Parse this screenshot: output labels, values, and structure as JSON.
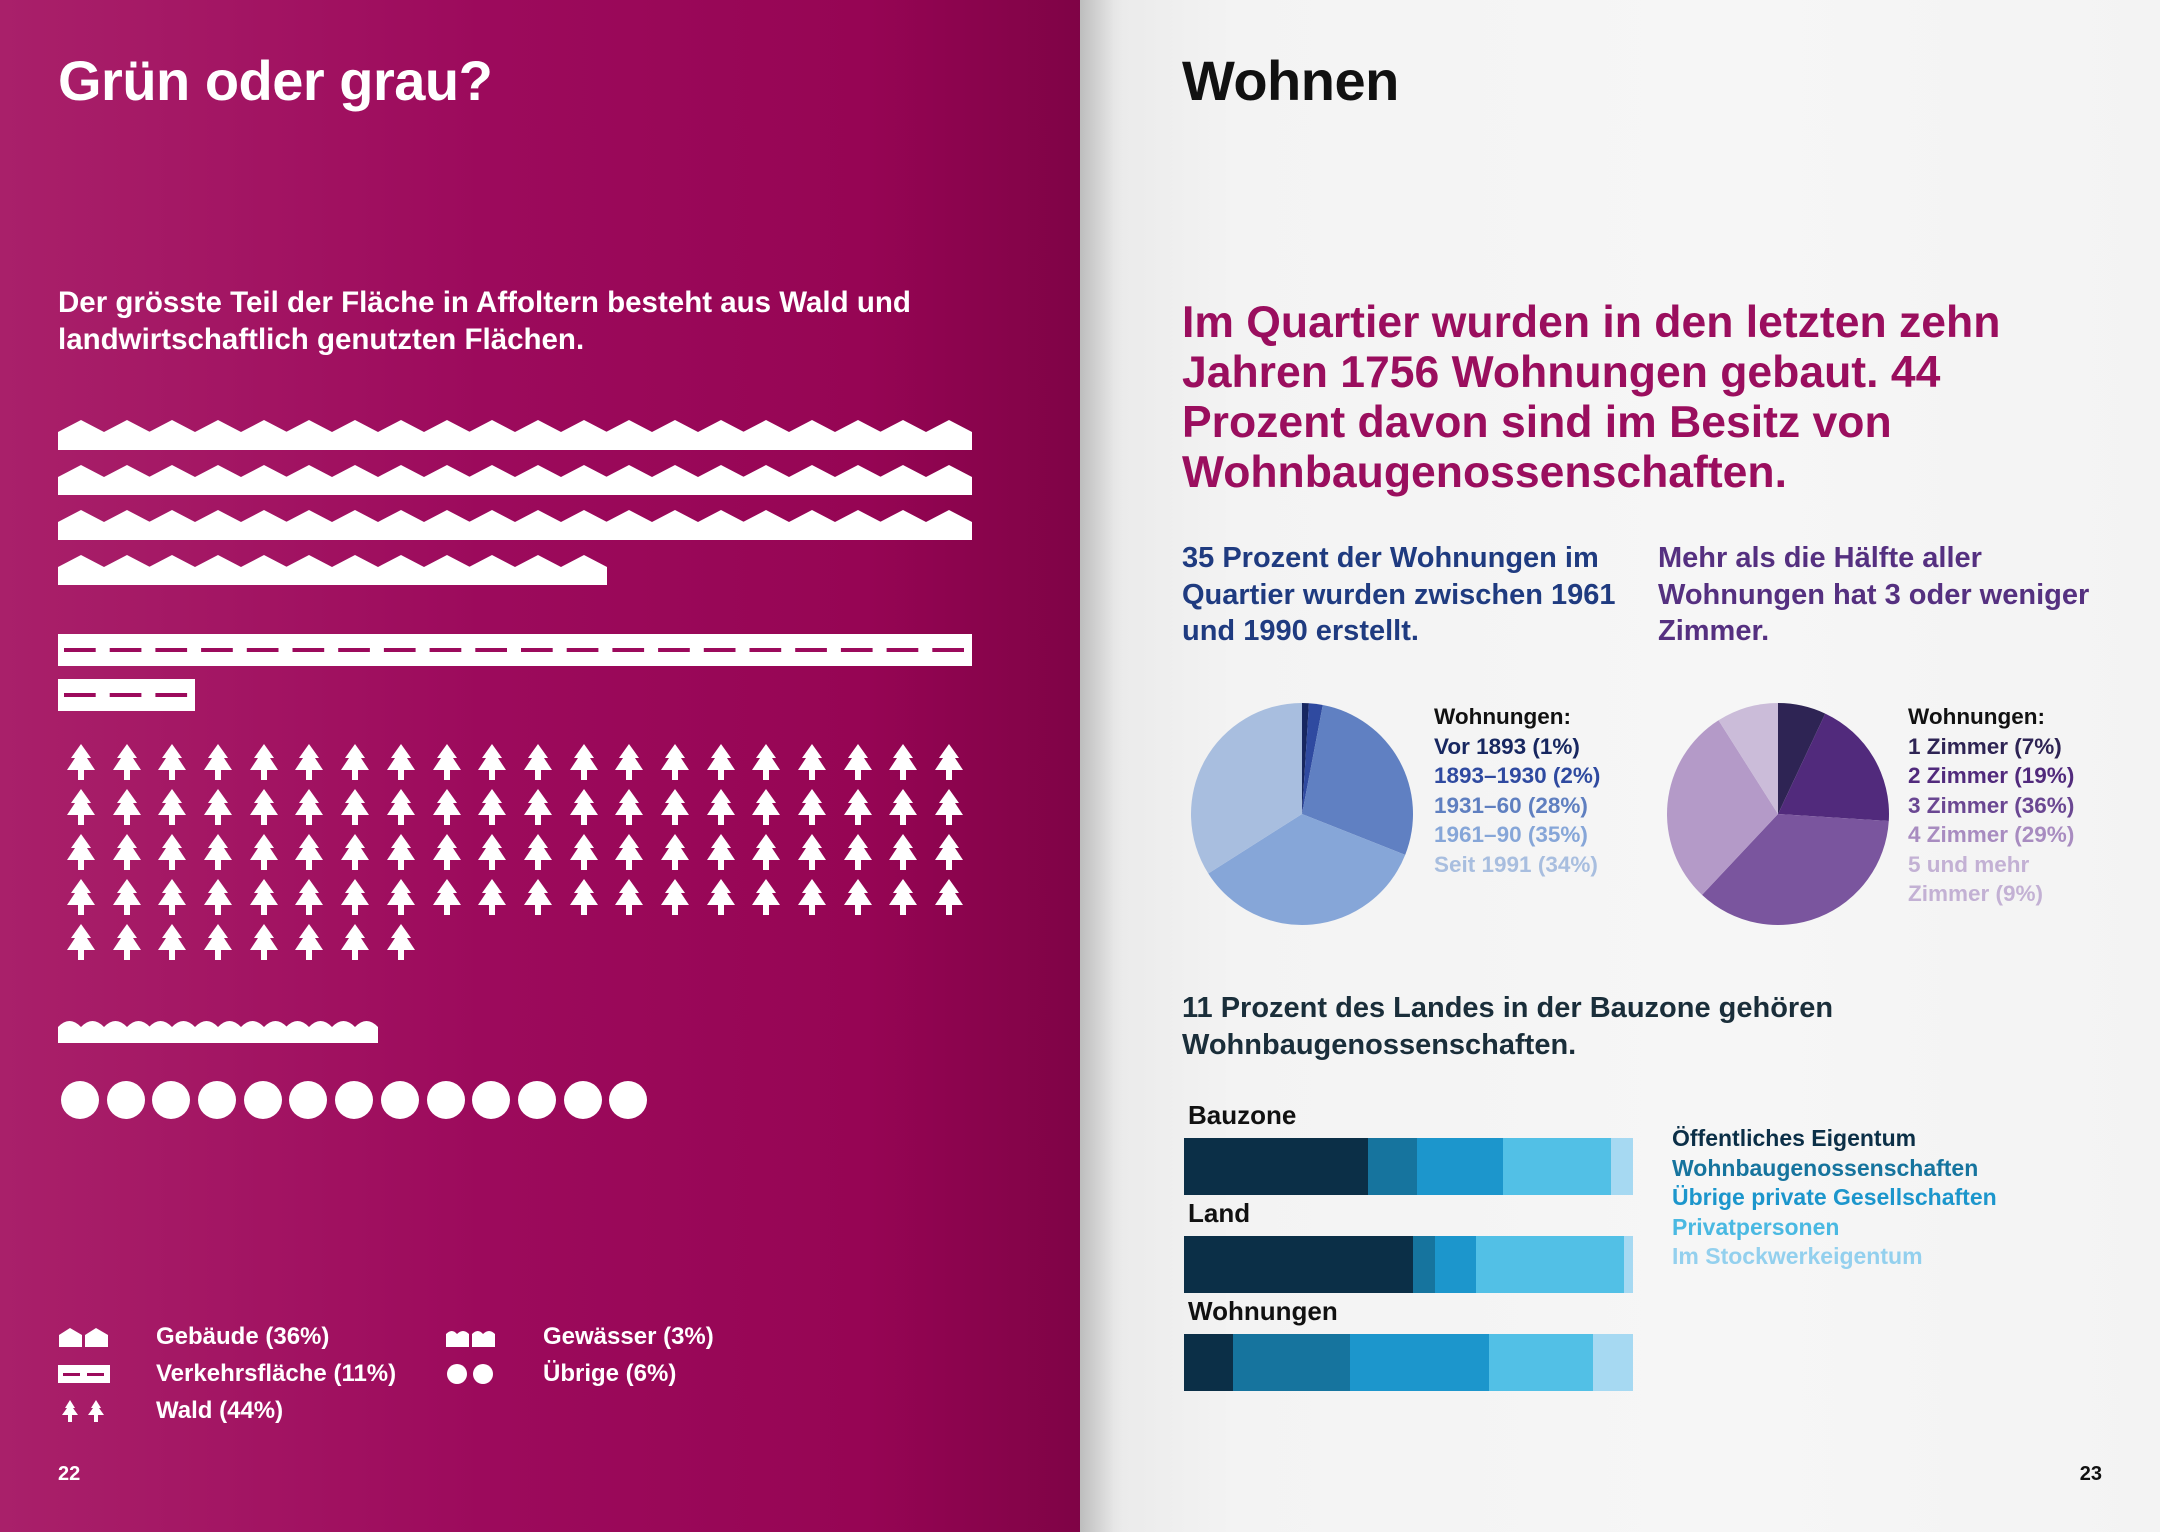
{
  "left_page": {
    "title": "Grün oder grau?",
    "intro": "Der grösste Teil der Fläche in Affoltern besteht aus Wald und landwirtschaftlich genutzten Flächen.",
    "page_number": "22",
    "colors": {
      "background": "#9c0a5c",
      "text": "#ffffff"
    },
    "pictogram": {
      "buildings_units": 72,
      "traffic_units": 23,
      "forest_units": 88,
      "water_units": 7,
      "other_units": 13,
      "per_row": 20
    },
    "legend": [
      {
        "icon": "buildings-icon",
        "label": "Gebäude (36%)"
      },
      {
        "icon": "traffic-area-icon",
        "label": "Verkehrsfläche (11%)"
      },
      {
        "icon": "forest-icon",
        "label": "Wald (44%)"
      },
      {
        "icon": "water-icon",
        "label": "Gewässer (3%)"
      },
      {
        "icon": "other-circles-icon",
        "label": "Übrige (6%)"
      }
    ]
  },
  "right_page": {
    "title": "Wohnen",
    "lead": "Im Quartier wurden in den letzten zehn Jahren 1756 Wohnungen gebaut. 44 Prozent davon sind im Besitz von Wohnbaugenossenschaften.",
    "sub1": "35 Prozent der Wohnungen im Quartier wurden zwischen 1961 und 1990 erstellt.",
    "sub2": "Mehr als die Hälfte aller Wohnungen hat 3 oder weniger Zimmer.",
    "sub3": "11 Prozent des Landes in der Bauzone gehören Wohnbaugenossenschaften.",
    "page_number": "23",
    "colors": {
      "lead": "#9a0e5e",
      "sub1": "#1f3b80",
      "sub2": "#553080"
    }
  },
  "chart_data": [
    {
      "type": "pie",
      "legend_title": "Wohnungen:",
      "categories": [
        "Vor 1893 (1%)",
        "1893–1930 (2%)",
        "1931–60 (28%)",
        "1961–90 (35%)",
        "Seit 1991 (34%)"
      ],
      "values": [
        1,
        2,
        28,
        35,
        34
      ],
      "colors": [
        "#172760",
        "#2f4aa0",
        "#6080c2",
        "#86a6d8",
        "#a8bedf"
      ],
      "legend_placement": "right"
    },
    {
      "type": "pie",
      "legend_title": "Wohnungen:",
      "categories": [
        "1 Zimmer (7%)",
        "2 Zimmer (19%)",
        "3 Zimmer (36%)",
        "4 Zimmer (29%)",
        "5 und mehr Zimmer (9%)"
      ],
      "legend_lines": [
        "1 Zimmer (7%)",
        "2 Zimmer (19%)",
        "3 Zimmer (36%)",
        "4 Zimmer (29%)",
        "5 und mehr",
        "Zimmer (9%)"
      ],
      "values": [
        7,
        19,
        36,
        29,
        9
      ],
      "colors": [
        "#2e2454",
        "#512a7c",
        "#7a559e",
        "#b49ac8",
        "#cbbcd9"
      ],
      "legend_placement": "right"
    },
    {
      "type": "bar",
      "orientation": "horizontal-stacked-100",
      "categories": [
        "Bauzone",
        "Land",
        "Wohnungen"
      ],
      "series": [
        {
          "name": "Öffentliches Eigentum",
          "values": [
            41,
            51,
            11
          ],
          "color": "#0b2f47"
        },
        {
          "name": "Wohnbaugenossenschaften",
          "values": [
            11,
            5,
            26
          ],
          "color": "#16749e"
        },
        {
          "name": "Übrige private Gesellschaften",
          "values": [
            19,
            9,
            31
          ],
          "color": "#1c96cc"
        },
        {
          "name": "Privatpersonen",
          "values": [
            24,
            33,
            23
          ],
          "color": "#52c0e6"
        },
        {
          "name": "Im Stockwerkeigentum",
          "values": [
            5,
            2,
            9
          ],
          "color": "#a6d9f2"
        }
      ],
      "legend_placement": "right"
    }
  ]
}
